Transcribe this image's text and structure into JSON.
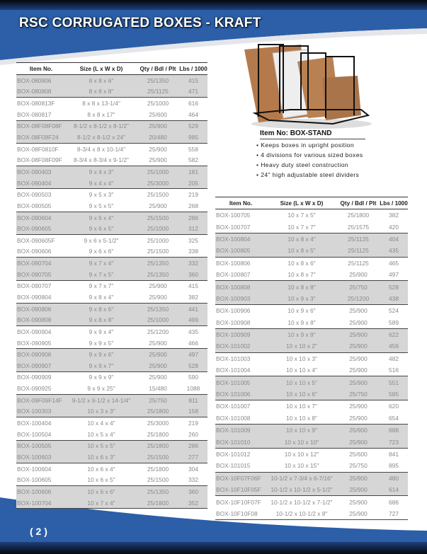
{
  "header": {
    "title": "RSC CORRUGATED BOXES - KRAFT"
  },
  "colors": {
    "brand_blue": "#2c5fa8",
    "header_dark": "#0b0f1e",
    "row_shade": "#d6d6d6"
  },
  "columns": [
    "Item No.",
    "Size (L x W x D)",
    "Qty / Bdl / Plt",
    "Lbs / 1000"
  ],
  "left_table": [
    [
      "BOX-080806",
      "8 x 8 x 6\"",
      "25/1350",
      "415"
    ],
    [
      "BOX-080808",
      "8 x 8 x 8\"",
      "25/1125",
      "471"
    ],
    [
      "BOX-080813F",
      "8 x 8 x 13-1/4\"",
      "25/1000",
      "616"
    ],
    [
      "BOX-080817",
      "8 x 8 x 17\"",
      "25/600",
      "464"
    ],
    [
      "BOX-08F08F08F",
      "8-1/2 x 8-1/2 x 8-1/2\"",
      "25/900",
      "529"
    ],
    [
      "BOX-08F08F24",
      "8-1/2 x 8-1/2 x 24\"",
      "20/480",
      "985"
    ],
    [
      "BOX-08F0810F",
      "8-3/4 x 8 x 10-1/4\"",
      "25/900",
      "558"
    ],
    [
      "BOX-08F08F09F",
      "8-3/4 x 8-3/4 x 9-1/2\"",
      "25/900",
      "582"
    ],
    [
      "BOX-090403",
      "9 x 4 x 3\"",
      "25/1000",
      "181"
    ],
    [
      "BOX-090404",
      "9 x 4 x 4\"",
      "25/3000",
      "205"
    ],
    [
      "BOX-090503",
      "9 x 5 x 3\"",
      "25/1500",
      "219"
    ],
    [
      "BOX-090505",
      "9 x 5 x 5\"",
      "25/900",
      "268"
    ],
    [
      "BOX-090604",
      "9 x 6 x 4\"",
      "25/1500",
      "286"
    ],
    [
      "BOX-090605",
      "9 x 6 x 5\"",
      "25/1000",
      "312"
    ],
    [
      "BOX-090605F",
      "9 x 6 x 5-1/2\"",
      "25/1000",
      "325"
    ],
    [
      "BOX-090606",
      "9 x 6 x 6\"",
      "25/1500",
      "338"
    ],
    [
      "BOX-090704",
      "9 x 7 x 4\"",
      "25/1350",
      "332"
    ],
    [
      "BOX-090705",
      "9 x 7 x 5\"",
      "25/1350",
      "360"
    ],
    [
      "BOX-090707",
      "9 x 7 x 7\"",
      "25/900",
      "415"
    ],
    [
      "BOX-090804",
      "9 x 8 x 4\"",
      "25/900",
      "382"
    ],
    [
      "BOX-090806",
      "9 x 8 x 6\"",
      "25/1350",
      "441"
    ],
    [
      "BOX-090808",
      "9 x 8 x 8\"",
      "25/1000",
      "499"
    ],
    [
      "BOX-090904",
      "9 x 9 x 4\"",
      "25/1200",
      "435"
    ],
    [
      "BOX-090905",
      "9 x 9 x 5\"",
      "25/900",
      "466"
    ],
    [
      "BOX-090906",
      "9 x 9 x 6\"",
      "25/900",
      "497"
    ],
    [
      "BOX-090907",
      "9 x 9 x 7\"",
      "25/900",
      "528"
    ],
    [
      "BOX-090909",
      "9 x 9 x 9\"",
      "25/900",
      "590"
    ],
    [
      "BOX-090925",
      "9 x 9 x 25\"",
      "15/480",
      "1088"
    ],
    [
      "BOX-09F09F14F",
      "9-1/2 x 9-1/2 x 14-1/4\"",
      "25/750",
      "811"
    ],
    [
      "BOX-100303",
      "10 x 3 x 3\"",
      "25/1800",
      "158"
    ],
    [
      "BOX-100404",
      "10 x 4 x 4\"",
      "25/3000",
      "219"
    ],
    [
      "BOX-100504",
      "10 x 5 x 4\"",
      "25/1800",
      "260"
    ],
    [
      "BOX-100505",
      "10 x 5 x 5\"",
      "25/1800",
      "286"
    ],
    [
      "BOX-100603",
      "10 x 6 x 3\"",
      "25/1500",
      "277"
    ],
    [
      "BOX-100604",
      "10 x 6 x 4\"",
      "25/1800",
      "304"
    ],
    [
      "BOX-100605",
      "10 x 6 x 5\"",
      "25/1500",
      "332"
    ],
    [
      "BOX-100606",
      "10 x 6 x 6\"",
      "25/1350",
      "360"
    ],
    [
      "BOX-100704",
      "10 x 7 x 4\"",
      "25/1800",
      "352"
    ]
  ],
  "right_table": [
    [
      "BOX-100705",
      "10 x 7 x 5\"",
      "25/1800",
      "382"
    ],
    [
      "BOX-100707",
      "10 x 7 x 7\"",
      "25/1575",
      "420"
    ],
    [
      "BOX-100804",
      "10 x 8 x 4\"",
      "25/1125",
      "404"
    ],
    [
      "BOX-100805",
      "10 x 8 x 5\"",
      "25/1125",
      "435"
    ],
    [
      "BOX-100806",
      "10 x 8 x 6\"",
      "25/1125",
      "465"
    ],
    [
      "BOX-100807",
      "10 x 8 x 7\"",
      "25/900",
      "497"
    ],
    [
      "BOX-100808",
      "10 x 8 x 8\"",
      "25/750",
      "528"
    ],
    [
      "BOX-100903",
      "10 x 9 x 3\"",
      "25/1200",
      "438"
    ],
    [
      "BOX-100906",
      "10 x 9 x 6\"",
      "25/900",
      "524"
    ],
    [
      "BOX-100908",
      "10 x 9 x 8\"",
      "25/900",
      "589"
    ],
    [
      "BOX-100909",
      "10 x 9 x 9\"",
      "25/900",
      "622"
    ],
    [
      "BOX-101002",
      "10 x 10 x 2\"",
      "25/900",
      "456"
    ],
    [
      "BOX-101003",
      "10 x 10 x 3\"",
      "25/900",
      "482"
    ],
    [
      "BOX-101004",
      "10 x 10 x 4\"",
      "25/900",
      "516"
    ],
    [
      "BOX-101005",
      "10 x 10 x 5\"",
      "25/900",
      "551"
    ],
    [
      "BOX-101006",
      "10 x 10 x 6\"",
      "25/750",
      "585"
    ],
    [
      "BOX-101007",
      "10 x 10 x 7\"",
      "25/900",
      "620"
    ],
    [
      "BOX-101008",
      "10 x 10 x 8\"",
      "25/900",
      "654"
    ],
    [
      "BOX-101009",
      "10 x 10 x 9\"",
      "25/900",
      "688"
    ],
    [
      "BOX-101010",
      "10 x 10 x 10\"",
      "25/900",
      "723"
    ],
    [
      "BOX-101012",
      "10 x 10 x 12\"",
      "25/600",
      "841"
    ],
    [
      "BOX-101015",
      "10 x 10 x 15\"",
      "25/750",
      "895"
    ],
    [
      "BOX-10F07F06F",
      "10-1/2 x 7-3/4 x 6-7/16\"",
      "25/900",
      "480"
    ],
    [
      "BOX-10F10F05F",
      "10-1/2 x 10-1/2 x 5-1/2\"",
      "25/900",
      "614"
    ],
    [
      "BOX-10F10F07F",
      "10-1/2 x 10-1/2 x 7-1/2\"",
      "25/900",
      "686"
    ],
    [
      "BOX-10F10F08",
      "10-1/2 x 10-1/2 x 8\"",
      "25/900",
      "727"
    ]
  ],
  "box_stand": {
    "title": "Item No: BOX-STAND",
    "features": [
      "Keeps boxes in upright position",
      "4 divisions for various sized boxes",
      "Heavy duty steel construction",
      "24\" high adjustable steel dividers"
    ]
  },
  "footer": {
    "page_number": "( 2 )"
  }
}
